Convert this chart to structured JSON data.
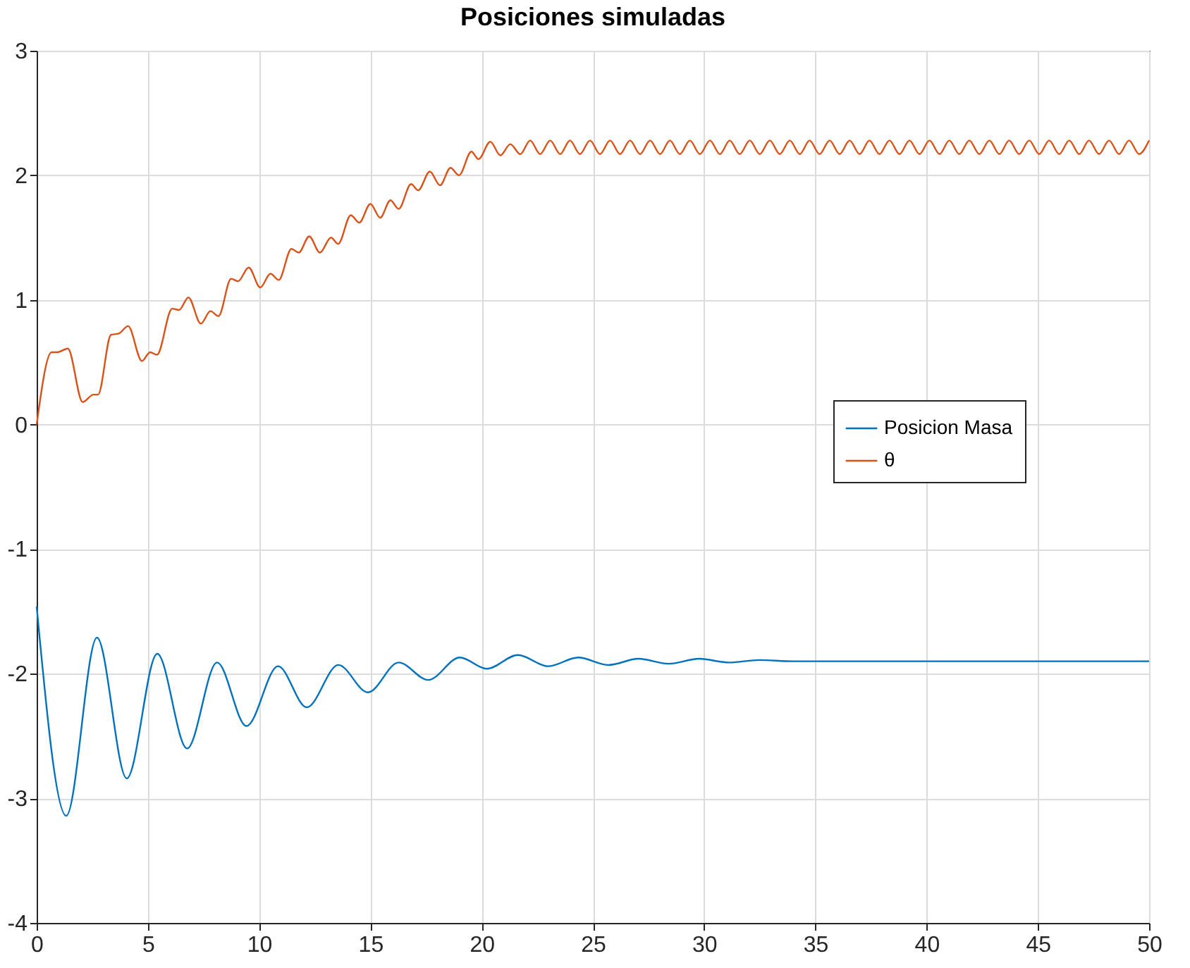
{
  "chart_data": {
    "type": "line",
    "title": "Posiciones simuladas",
    "xlim": [
      0,
      50
    ],
    "ylim": [
      -4,
      3
    ],
    "xticks": [
      0,
      5,
      10,
      15,
      20,
      25,
      30,
      35,
      40,
      45,
      50
    ],
    "yticks": [
      -4,
      -3,
      -2,
      -1,
      0,
      1,
      2,
      3
    ],
    "grid": true,
    "legend": "right",
    "marker": "none",
    "line_style": "solid",
    "series": [
      {
        "name": "Posicion Masa",
        "color": "#0072bd",
        "x": [
          0,
          1.33,
          2.71,
          4.05,
          5.42,
          6.76,
          8.11,
          9.43,
          10.85,
          12.14,
          13.56,
          14.89,
          16.27,
          17.6,
          19.02,
          20.23,
          21.63,
          22.99,
          24.34,
          25.7,
          27.05,
          28.41,
          29.77,
          31.12,
          32.48,
          34,
          36,
          38,
          40,
          42,
          44,
          46,
          48,
          50
        ],
        "values": [
          -1.46,
          -3.14,
          -1.71,
          -2.84,
          -1.84,
          -2.6,
          -1.91,
          -2.42,
          -1.94,
          -2.27,
          -1.93,
          -2.15,
          -1.91,
          -2.05,
          -1.87,
          -1.96,
          -1.85,
          -1.94,
          -1.87,
          -1.93,
          -1.88,
          -1.92,
          -1.88,
          -1.91,
          -1.89,
          -1.9,
          -1.9,
          -1.9,
          -1.9,
          -1.9,
          -1.9,
          -1.9,
          -1.9,
          -1.9
        ]
      },
      {
        "name": "θ",
        "color": "#d95319",
        "x": [
          0,
          0.67,
          0.92,
          1.4,
          2.07,
          2.55,
          2.76,
          3.34,
          3.69,
          4.11,
          4.73,
          5.1,
          5.41,
          6.09,
          6.4,
          6.82,
          7.38,
          7.81,
          8.17,
          8.74,
          9.05,
          9.53,
          10.05,
          10.51,
          10.88,
          11.45,
          11.78,
          12.25,
          12.73,
          13.23,
          13.55,
          14.12,
          14.5,
          15.0,
          15.44,
          15.9,
          16.27,
          16.83,
          17.15,
          17.67,
          18.13,
          18.6,
          18.98,
          19.54,
          19.86,
          20.39,
          20.84,
          21.29,
          21.74,
          22.18,
          22.63,
          23.08,
          23.53,
          23.97,
          24.42,
          24.87,
          25.32,
          25.77,
          26.22,
          26.67,
          27.12,
          27.57,
          28.02,
          28.46,
          28.91,
          29.36,
          29.81,
          30.26,
          30.71,
          31.15,
          31.6,
          32.05,
          32.5,
          32.95,
          33.4,
          33.85,
          34.3,
          34.74,
          35.19,
          35.64,
          36.09,
          36.54,
          36.99,
          37.43,
          37.88,
          38.33,
          38.78,
          39.23,
          39.68,
          40.13,
          40.58,
          41.02,
          41.47,
          41.92,
          42.37,
          42.82,
          43.27,
          43.71,
          44.16,
          44.61,
          45.06,
          45.51,
          45.96,
          46.41,
          46.86,
          47.3,
          47.75,
          48.2,
          48.65,
          49.1,
          49.55,
          50
        ],
        "values": [
          0,
          0.58,
          0.58,
          0.61,
          0.18,
          0.24,
          0.24,
          0.72,
          0.73,
          0.79,
          0.51,
          0.58,
          0.56,
          0.93,
          0.92,
          1.02,
          0.81,
          0.91,
          0.87,
          1.17,
          1.15,
          1.26,
          1.1,
          1.21,
          1.16,
          1.41,
          1.38,
          1.51,
          1.38,
          1.5,
          1.45,
          1.68,
          1.62,
          1.77,
          1.66,
          1.8,
          1.73,
          1.93,
          1.88,
          2.03,
          1.92,
          2.06,
          2.0,
          2.19,
          2.13,
          2.27,
          2.16,
          2.25,
          2.17,
          2.28,
          2.17,
          2.28,
          2.17,
          2.28,
          2.17,
          2.28,
          2.17,
          2.28,
          2.17,
          2.28,
          2.17,
          2.28,
          2.17,
          2.28,
          2.17,
          2.28,
          2.17,
          2.28,
          2.17,
          2.28,
          2.17,
          2.28,
          2.17,
          2.28,
          2.17,
          2.28,
          2.17,
          2.28,
          2.17,
          2.28,
          2.17,
          2.28,
          2.17,
          2.28,
          2.17,
          2.28,
          2.17,
          2.28,
          2.17,
          2.28,
          2.17,
          2.28,
          2.17,
          2.28,
          2.17,
          2.28,
          2.17,
          2.28,
          2.17,
          2.28,
          2.17,
          2.28,
          2.17,
          2.28,
          2.17,
          2.28,
          2.17,
          2.28,
          2.17,
          2.28,
          2.17,
          2.28
        ]
      }
    ]
  }
}
